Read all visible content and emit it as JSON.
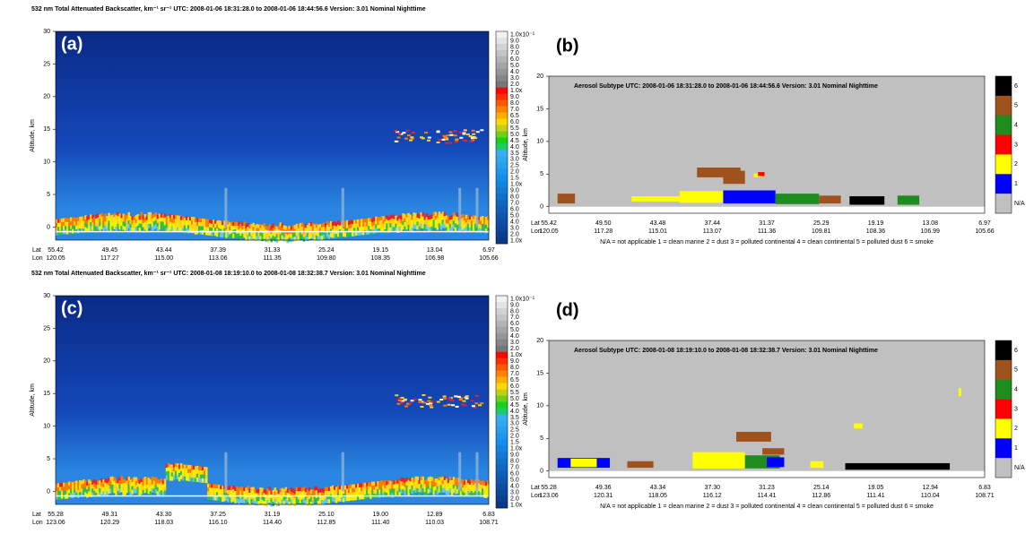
{
  "panels": [
    {
      "label": "(a)",
      "kind": "backscatter",
      "title": "532 nm Total Attenuated Backscatter, km⁻¹ sr⁻¹    UTC:  2008-01-06 18:31:28.0  to  2008-01-06 18:44:56.6    Version: 3.01  Nominal  Nighttime",
      "y_label": "Altitude, km",
      "ylim": [
        -2,
        30
      ],
      "yticks": [
        0,
        5,
        10,
        15,
        20,
        25,
        30
      ],
      "lat_label": "Lat",
      "lon_label": "Lon",
      "lat": [
        "55.42",
        "49.45",
        "43.44",
        "37.39",
        "31.33",
        "25.24",
        "19.15",
        "13.04",
        "6.97"
      ],
      "lon": [
        "120.05",
        "117.27",
        "115.00",
        "113.06",
        "111.35",
        "109.80",
        "108.35",
        "106.98",
        "105.66"
      ],
      "colorbar": [
        "1.0x10⁻¹",
        "9.0",
        "8.0",
        "7.0",
        "6.0",
        "5.0",
        "4.0",
        "3.0",
        "2.0",
        "1.0x",
        "9.0",
        "8.0",
        "7.0",
        "6.5",
        "6.0",
        "5.5",
        "5.0",
        "4.5",
        "4.0",
        "3.5",
        "3.0",
        "2.5",
        "2.0",
        "1.5",
        "1.0x",
        "9.0",
        "8.0",
        "7.0",
        "6.0",
        "5.0",
        "4.0",
        "3.0",
        "2.0",
        "1.0x"
      ]
    },
    {
      "label": "(b)",
      "kind": "aerosol",
      "title": "Aerosol Subtype    UTC:  2008-01-06  18:31:28.0  to  2008-01-06  18:44:56.6    Version: 3.01  Nominal  Nighttime",
      "y_label": "Altitude, km",
      "ylim": [
        -1,
        20
      ],
      "yticks": [
        0,
        5,
        10,
        15,
        20
      ],
      "lat_label": "Lat",
      "lon_label": "Lon",
      "lat": [
        "55.42",
        "49.50",
        "43.48",
        "37.44",
        "31.37",
        "25.29",
        "19.19",
        "13.08",
        "6.97"
      ],
      "lon": [
        "120.05",
        "117.28",
        "115.01",
        "113.07",
        "111.36",
        "109.81",
        "108.36",
        "106.99",
        "105.66"
      ],
      "colorbar": [
        "6",
        "5",
        "4",
        "3",
        "2",
        "1",
        "N/A"
      ],
      "colorbar_colors": [
        "#000000",
        "#a0521c",
        "#1e8c1e",
        "#ff0000",
        "#ffff00",
        "#0000ff",
        "#c0c0c0"
      ],
      "legend": "N/A = not applicable     1 = clean marine     2 = dust     3 = polluted continental     4 = clean continental     5 = polluted dust     6 = smoke"
    },
    {
      "label": "(c)",
      "kind": "backscatter",
      "title": "532 nm Total Attenuated Backscatter, km⁻¹ sr⁻¹    UTC:  2008-01-08 18:19:10.0  to  2008-01-08 18:32:38.7    Version: 3.01  Nominal  Nighttime",
      "y_label": "Altitude, km",
      "ylim": [
        -2,
        30
      ],
      "yticks": [
        0,
        5,
        10,
        15,
        20,
        25,
        30
      ],
      "lat_label": "Lat",
      "lon_label": "Lon",
      "lat": [
        "55.28",
        "49.31",
        "43.30",
        "37.25",
        "31.19",
        "25.10",
        "19.00",
        "12.89",
        "6.83"
      ],
      "lon": [
        "123.06",
        "120.29",
        "118.03",
        "116.10",
        "114.40",
        "112.85",
        "111.40",
        "110.03",
        "108.71"
      ],
      "colorbar": [
        "1.0x10⁻¹",
        "9.0",
        "8.0",
        "7.0",
        "6.0",
        "5.0",
        "4.0",
        "3.0",
        "2.0",
        "1.0x",
        "9.0",
        "8.0",
        "7.0",
        "6.5",
        "6.0",
        "5.5",
        "5.0",
        "4.5",
        "4.0",
        "3.5",
        "3.0",
        "2.5",
        "2.0",
        "1.5",
        "1.0x",
        "9.0",
        "8.0",
        "7.0",
        "6.0",
        "5.0",
        "4.0",
        "3.0",
        "2.0",
        "1.0x"
      ]
    },
    {
      "label": "(d)",
      "kind": "aerosol",
      "title": "Aerosol Subtype    UTC:  2008-01-08  18:19:10.0  to  2008-01-08  18:32:38.7    Version: 3.01  Nominal  Nighttime",
      "y_label": "Altitude, km",
      "ylim": [
        -1,
        20
      ],
      "yticks": [
        0,
        5,
        10,
        15,
        20
      ],
      "lat_label": "Lat",
      "lon_label": "Lon",
      "lat": [
        "55.28",
        "49.36",
        "43.34",
        "37.30",
        "31.23",
        "25.14",
        "19.05",
        "12.94",
        "6.83"
      ],
      "lon": [
        "123.06",
        "120.31",
        "118.05",
        "116.12",
        "114.41",
        "112.86",
        "111.41",
        "110.04",
        "108.71"
      ],
      "colorbar": [
        "6",
        "5",
        "4",
        "3",
        "2",
        "1",
        "N/A"
      ],
      "colorbar_colors": [
        "#000000",
        "#a0521c",
        "#1e8c1e",
        "#ff0000",
        "#ffff00",
        "#0000ff",
        "#c0c0c0"
      ],
      "legend": "N/A = not applicable     1 = clean marine     2 = dust     3 = polluted continental     4 = clean continental     5 = polluted dust     6 = smoke"
    }
  ]
}
